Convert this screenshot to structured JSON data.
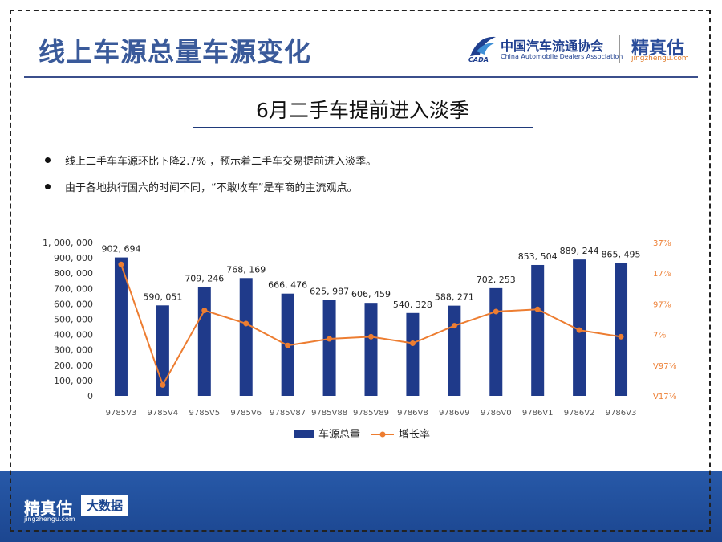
{
  "header": {
    "title": "线上车源总量车源变化",
    "cada_name_cn": "中国汽车流通协会",
    "cada_name_en": "China Automobile Dealers Association",
    "cada_mark": "CADA",
    "brand_cn": "精真估",
    "brand_en": "jingzhengu.com"
  },
  "subtitle": "6月二手车提前进入淡季",
  "bullets": [
    "线上二手车车源环比下降2.7% ，预示着二手车交易提前进入淡季。",
    "由于各地执行国六的时间不同，“不敢收车”是车商的主流观点。"
  ],
  "footer": {
    "brand_cn": "精真估",
    "brand_en": "jingzhengu.com",
    "badge": "大数据"
  },
  "colors": {
    "bar": "#1f3a8a",
    "line": "#ed7d31",
    "accent": "#3a5a9a"
  },
  "chart_data": {
    "type": "bar",
    "categories": [
      "9785V3",
      "9785V4",
      "9785V5",
      "9785V6",
      "9785V87",
      "9785V88",
      "9785V89",
      "9786V8",
      "9786V9",
      "9786V0",
      "9786V1",
      "9786V2",
      "9786V3"
    ],
    "series": [
      {
        "name": "车源总量",
        "type": "bar",
        "axis": "left",
        "values": [
          902694,
          590051,
          709246,
          768169,
          666476,
          625987,
          606459,
          540328,
          588271,
          702253,
          853504,
          889244,
          865495
        ],
        "labels": [
          "902, 694",
          "590, 051",
          "709, 246",
          "768, 169",
          "666, 476",
          "625, 987",
          "606, 459",
          "540, 328",
          "588, 271",
          "702, 253",
          "853, 504",
          "889, 244",
          "865, 495"
        ]
      },
      {
        "name": "增长率",
        "type": "line",
        "axis": "right",
        "values": [
          0.2,
          -0.35,
          -0.01,
          -0.07,
          -0.17,
          -0.14,
          -0.13,
          -0.16,
          -0.08,
          -0.015,
          -0.005,
          -0.1,
          -0.13
        ]
      }
    ],
    "y_left": {
      "min": 0,
      "max": 1000000,
      "ticks": [
        "0",
        "100, 000",
        "200, 000",
        "300, 000",
        "400, 000",
        "500, 000",
        "600, 000",
        "700, 000",
        "800, 000",
        "900, 000",
        "1, 000, 000"
      ]
    },
    "y_right": {
      "min": -0.4,
      "max": 0.3,
      "ticks": [
        "V17⅞",
        "V97⅞",
        "7⅞",
        "97⅞",
        "17⅞",
        "37⅞"
      ]
    },
    "legend": [
      "车源总量",
      "增长率"
    ],
    "legend_position": "bottom"
  }
}
